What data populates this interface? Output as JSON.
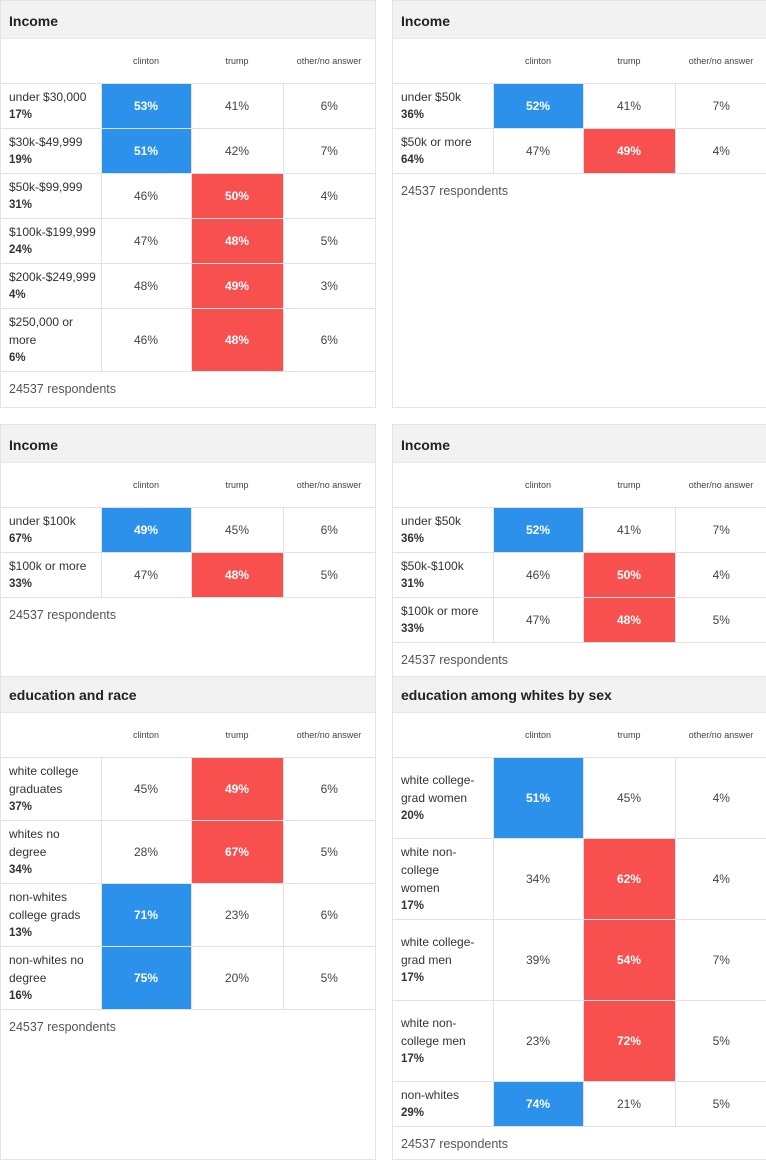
{
  "columns": [
    "clinton",
    "trump",
    "other/no answer"
  ],
  "respondents_label": "24537 respondents",
  "colors": {
    "clinton": "#2b91ea",
    "trump": "#f84f4f"
  },
  "panels": [
    {
      "title": "Income",
      "rows": [
        {
          "label": "under $30,000",
          "pct": "17%",
          "clinton": "53%",
          "trump": "41%",
          "other": "6%",
          "winner": "clinton"
        },
        {
          "label": "$30k-$49,999",
          "pct": "19%",
          "clinton": "51%",
          "trump": "42%",
          "other": "7%",
          "winner": "clinton"
        },
        {
          "label": "$50k-$99,999",
          "pct": "31%",
          "clinton": "46%",
          "trump": "50%",
          "other": "4%",
          "winner": "trump"
        },
        {
          "label": "$100k-$199,999",
          "pct": "24%",
          "clinton": "47%",
          "trump": "48%",
          "other": "5%",
          "winner": "trump"
        },
        {
          "label": "$200k-$249,999",
          "pct": "4%",
          "clinton": "48%",
          "trump": "49%",
          "other": "3%",
          "winner": "trump"
        },
        {
          "label": "$250,000 or more",
          "pct": "6%",
          "clinton": "46%",
          "trump": "48%",
          "other": "6%",
          "winner": "trump"
        }
      ]
    },
    {
      "title": "Income",
      "rows": [
        {
          "label": "under $50k",
          "pct": "36%",
          "clinton": "52%",
          "trump": "41%",
          "other": "7%",
          "winner": "clinton"
        },
        {
          "label": "$50k or more",
          "pct": "64%",
          "clinton": "47%",
          "trump": "49%",
          "other": "4%",
          "winner": "trump"
        }
      ]
    },
    {
      "title": "Income",
      "rows": [
        {
          "label": "under $100k",
          "pct": "67%",
          "clinton": "49%",
          "trump": "45%",
          "other": "6%",
          "winner": "clinton"
        },
        {
          "label": "$100k or more",
          "pct": "33%",
          "clinton": "47%",
          "trump": "48%",
          "other": "5%",
          "winner": "trump"
        }
      ]
    },
    {
      "title": "Income",
      "rows": [
        {
          "label": "under $50k",
          "pct": "36%",
          "clinton": "52%",
          "trump": "41%",
          "other": "7%",
          "winner": "clinton"
        },
        {
          "label": "$50k-$100k",
          "pct": "31%",
          "clinton": "46%",
          "trump": "50%",
          "other": "4%",
          "winner": "trump"
        },
        {
          "label": "$100k or more",
          "pct": "33%",
          "clinton": "47%",
          "trump": "48%",
          "other": "5%",
          "winner": "trump"
        }
      ]
    },
    {
      "title": "education and race",
      "rows": [
        {
          "label": "white college graduates",
          "pct": "37%",
          "clinton": "45%",
          "trump": "49%",
          "other": "6%",
          "winner": "trump"
        },
        {
          "label": "whites no degree",
          "pct": "34%",
          "clinton": "28%",
          "trump": "67%",
          "other": "5%",
          "winner": "trump"
        },
        {
          "label": "non-whites college grads",
          "pct": "13%",
          "clinton": "71%",
          "trump": "23%",
          "other": "6%",
          "winner": "clinton"
        },
        {
          "label": "non-whites no degree",
          "pct": "16%",
          "clinton": "75%",
          "trump": "20%",
          "other": "5%",
          "winner": "clinton"
        }
      ]
    },
    {
      "title": "education among whites by sex",
      "rows": [
        {
          "label": "white college-grad women",
          "pct": "20%",
          "clinton": "51%",
          "trump": "45%",
          "other": "4%",
          "winner": "clinton"
        },
        {
          "label": "white non-college women",
          "pct": "17%",
          "clinton": "34%",
          "trump": "62%",
          "other": "4%",
          "winner": "trump"
        },
        {
          "label": "white college-grad men",
          "pct": "17%",
          "clinton": "39%",
          "trump": "54%",
          "other": "7%",
          "winner": "trump"
        },
        {
          "label": "white non-college men",
          "pct": "17%",
          "clinton": "23%",
          "trump": "72%",
          "other": "5%",
          "winner": "trump"
        },
        {
          "label": "non-whites",
          "pct": "29%",
          "clinton": "74%",
          "trump": "21%",
          "other": "5%",
          "winner": "clinton"
        }
      ]
    }
  ]
}
